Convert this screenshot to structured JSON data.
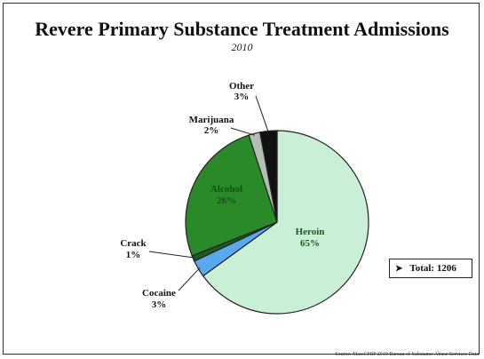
{
  "chart_data": {
    "type": "pie",
    "title": "Revere Primary Substance Treatment Admissions",
    "subtitle": "2010",
    "slices": [
      {
        "label": "Heroin",
        "value": 65,
        "pct_label": "65%",
        "color": "#c9f0d6"
      },
      {
        "label": "Cocaine",
        "value": 3,
        "pct_label": "3%",
        "color": "#5aa8ee"
      },
      {
        "label": "Crack",
        "value": 1,
        "pct_label": "1%",
        "color": "#1e5a22"
      },
      {
        "label": "Alcohol",
        "value": 26,
        "pct_label": "26%",
        "color": "#2a8a2a"
      },
      {
        "label": "Marijuana",
        "value": 2,
        "pct_label": "2%",
        "color": "#b5bcb5"
      },
      {
        "label": "Other",
        "value": 3,
        "pct_label": "3%",
        "color": "#111111"
      }
    ],
    "total_label": "Total: 1206",
    "source": "Source: MassCHIP 2010 Bureau of Substance Abuse Services Data"
  }
}
